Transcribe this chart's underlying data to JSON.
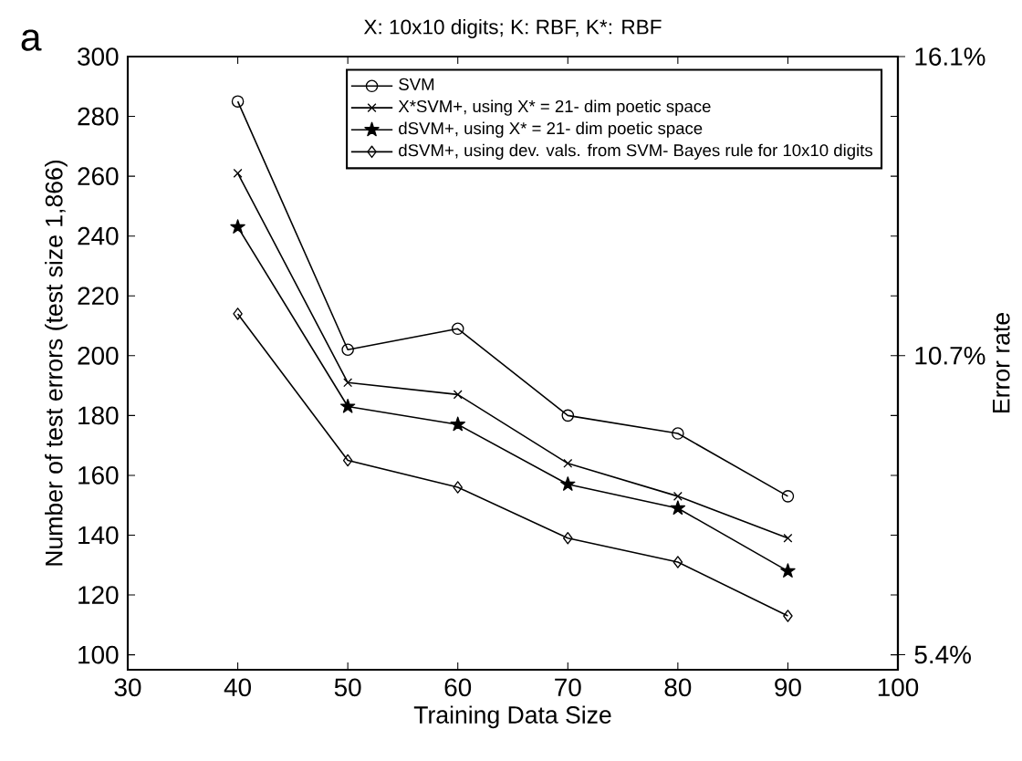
{
  "chart_data": {
    "type": "line",
    "title": "X: 10x10 digits;      K: RBF,  K*: RBF",
    "xlabel": "Training Data Size",
    "ylabel": "Number of test errors (test size 1,866)",
    "y2label": "Error rate",
    "annotations": [
      "a"
    ],
    "x": [
      40,
      50,
      60,
      70,
      80,
      90
    ],
    "series": [
      {
        "name": "SVM",
        "color": "#000000",
        "marker": "circle",
        "values": [
          285,
          202,
          209,
          180,
          174,
          153
        ]
      },
      {
        "name": "X*SVM+, using X* = 21- dim poetic space",
        "color": "#000000",
        "marker": "cross",
        "values": [
          261,
          191,
          187,
          164,
          153,
          139
        ]
      },
      {
        "name": "dSVM+,  using X* = 21- dim poetic space",
        "color": "#000000",
        "marker": "star",
        "values": [
          243,
          183,
          177,
          157,
          149,
          128
        ]
      },
      {
        "name": "dSVM+,  using dev. vals. from SVM- Bayes rule for 10x10 digits",
        "color": "#000000",
        "marker": "diamond",
        "values": [
          214,
          165,
          156,
          139,
          131,
          113
        ]
      }
    ],
    "xlim": [
      30,
      100
    ],
    "xticks": [
      30,
      40,
      50,
      60,
      70,
      80,
      90,
      100
    ],
    "ylim": [
      95,
      300
    ],
    "yticks": [
      100,
      120,
      140,
      160,
      180,
      200,
      220,
      240,
      260,
      280,
      300
    ],
    "y2lim": [
      5.09,
      16.08
    ],
    "y2ticks": [
      {
        "value": 5.36,
        "label": "5.4%"
      },
      {
        "value": 10.72,
        "label": "10.7%"
      },
      {
        "value": 16.08,
        "label": "16.1%"
      }
    ],
    "grid": false,
    "legend": "top right",
    "line_style": "solid"
  }
}
